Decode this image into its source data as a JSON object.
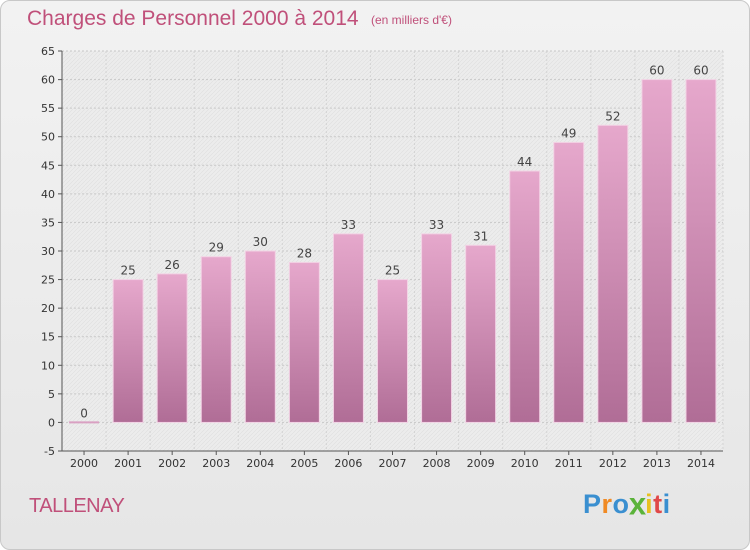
{
  "header": {
    "title": "Charges de Personnel 2000 à 2014",
    "subtitle": "(en milliers d'€)"
  },
  "footer": {
    "commune": "TALLENAY",
    "logo": {
      "letters": [
        "P",
        "r",
        "o",
        "x",
        "i",
        "t",
        "i"
      ],
      "colors": [
        "#3a8fd0",
        "#f08a24",
        "#3a8fd0",
        "#5bb33a",
        "#e8c020",
        "#e04848",
        "#3a8fd0"
      ]
    }
  },
  "chart_data": {
    "type": "bar",
    "categories": [
      "2000",
      "2001",
      "2002",
      "2003",
      "2004",
      "2005",
      "2006",
      "2007",
      "2008",
      "2009",
      "2010",
      "2011",
      "2012",
      "2013",
      "2014"
    ],
    "values": [
      0,
      25,
      26,
      29,
      30,
      28,
      33,
      25,
      33,
      31,
      44,
      49,
      52,
      60,
      60
    ],
    "data_labels": [
      "0",
      "25",
      "26",
      "29",
      "30",
      "28",
      "33",
      "25",
      "33",
      "31",
      "44",
      "49",
      "52",
      "60",
      "60"
    ],
    "title": "Charges de Personnel 2000 à 2014",
    "ylim": [
      -5,
      65
    ],
    "yticks": [
      -5,
      0,
      5,
      10,
      15,
      20,
      25,
      30,
      35,
      40,
      45,
      50,
      55,
      60,
      65
    ],
    "grid": true,
    "legend": "none",
    "colors": {
      "bar_top": "#e6a8cc",
      "bar_bottom": "#b06d96",
      "text": "#c0507a"
    }
  }
}
